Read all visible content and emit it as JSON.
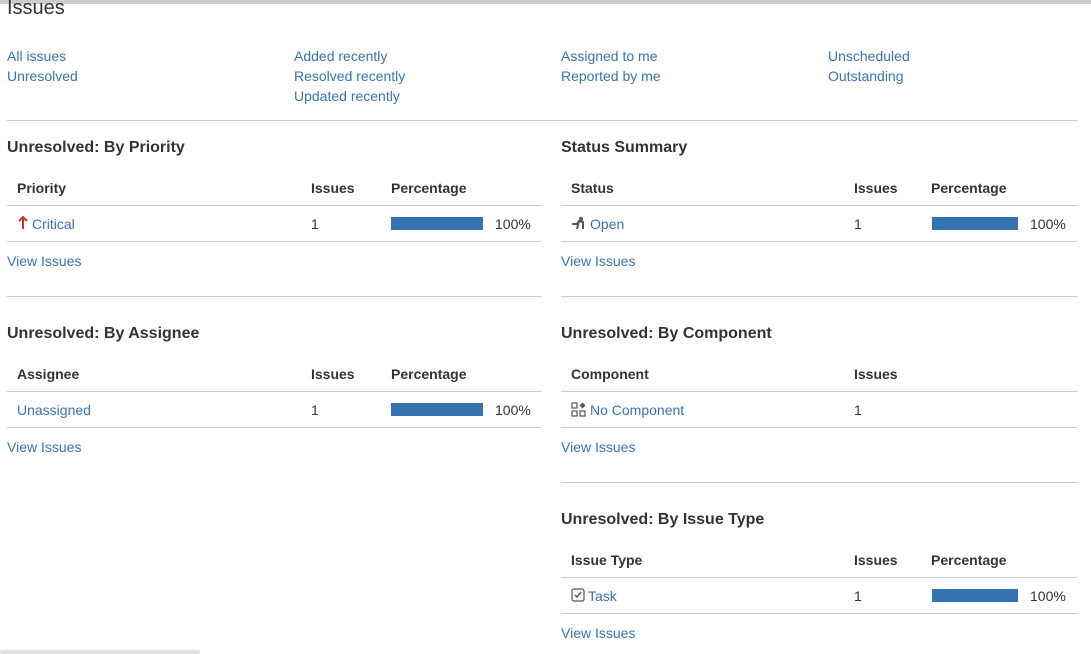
{
  "page": {
    "title": "Issues"
  },
  "filters": {
    "col1": [
      "All issues",
      "Unresolved"
    ],
    "col2": [
      "Added recently",
      "Resolved recently",
      "Updated recently"
    ],
    "col3": [
      "Assigned to me",
      "Reported by me"
    ],
    "col4": [
      "Unscheduled",
      "Outstanding"
    ]
  },
  "view_issues_label": "View Issues",
  "by_priority": {
    "title": "Unresolved: By Priority",
    "headers": [
      "Priority",
      "Issues",
      "Percentage"
    ],
    "rows": [
      {
        "name": "Critical",
        "icon": "arrow-up-icon",
        "issues": "1",
        "percent": "100%",
        "fraction": 1.0
      }
    ]
  },
  "status_summary": {
    "title": "Status Summary",
    "headers": [
      "Status",
      "Issues",
      "Percentage"
    ],
    "rows": [
      {
        "name": "Open",
        "icon": "open-status-icon",
        "issues": "1",
        "percent": "100%",
        "fraction": 1.0
      }
    ]
  },
  "by_assignee": {
    "title": "Unresolved: By Assignee",
    "headers": [
      "Assignee",
      "Issues",
      "Percentage"
    ],
    "rows": [
      {
        "name": "Unassigned",
        "issues": "1",
        "percent": "100%",
        "fraction": 1.0
      }
    ]
  },
  "by_component": {
    "title": "Unresolved: By Component",
    "headers": [
      "Component",
      "Issues"
    ],
    "rows": [
      {
        "name": "No Component",
        "icon": "component-icon",
        "issues": "1"
      }
    ]
  },
  "by_issue_type": {
    "title": "Unresolved: By Issue Type",
    "headers": [
      "Issue Type",
      "Issues",
      "Percentage"
    ],
    "rows": [
      {
        "name": "Task",
        "icon": "task-icon",
        "issues": "1",
        "percent": "100%",
        "fraction": 1.0
      }
    ]
  },
  "colors": {
    "link": "#3b73af",
    "bar": "#3572b0",
    "divider": "#cccccc"
  }
}
